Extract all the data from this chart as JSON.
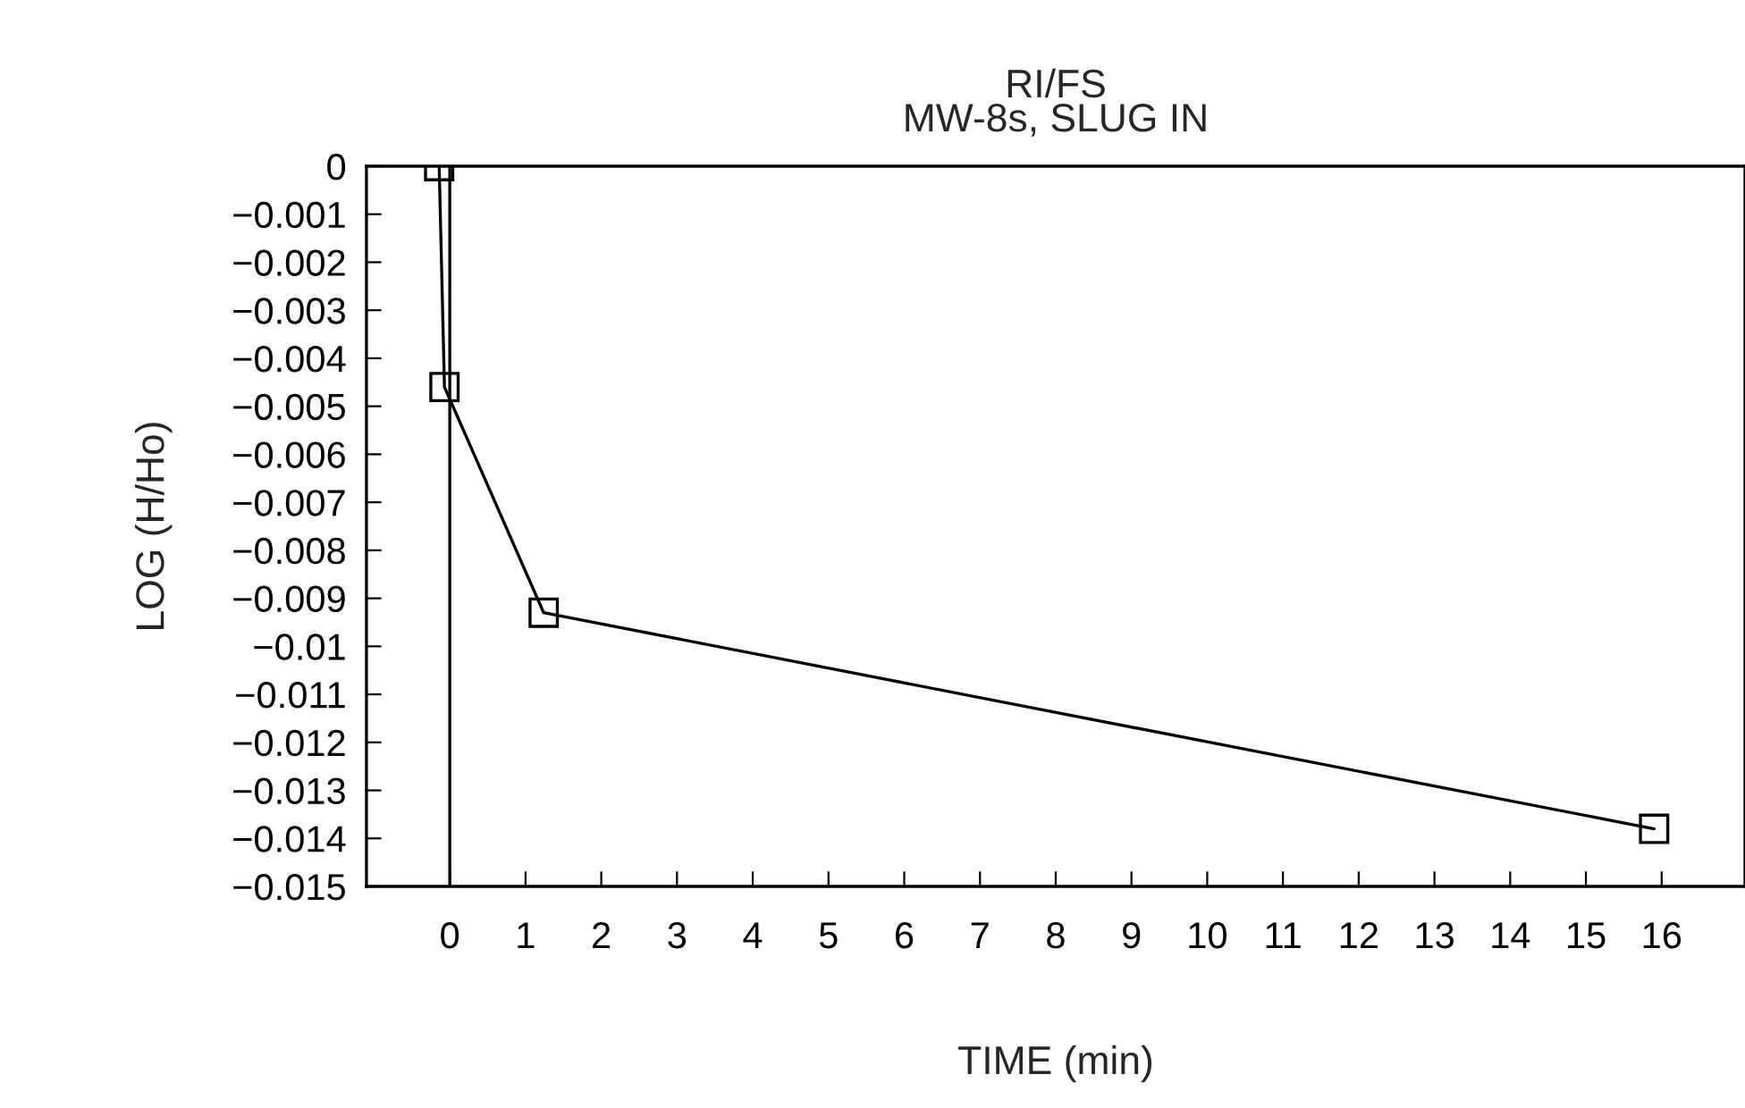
{
  "chart_data": {
    "type": "line",
    "title": "RI/FS\nMW-8s, SLUG IN",
    "xlabel": "TIME (min)",
    "ylabel": "LOG (H/Ho)",
    "x": [
      -0.14,
      -0.07,
      1.24,
      15.9
    ],
    "series": [
      {
        "color": "#000000",
        "values": [
          0,
          -0.0046,
          -0.0093,
          -0.0138
        ]
      }
    ],
    "marker": "square",
    "line_style": "solid",
    "grid": false,
    "legend": false,
    "xlim": [
      -1.1,
      17.1
    ],
    "ylim": [
      -0.015,
      0
    ],
    "xticks": [
      0,
      1,
      2,
      3,
      4,
      5,
      6,
      7,
      8,
      9,
      10,
      11,
      12,
      13,
      14,
      15,
      16
    ],
    "yticks": [
      0,
      {
        "value": -0.001,
        "label": "−0.001"
      },
      {
        "value": -0.002,
        "label": "−0.002"
      },
      {
        "value": -0.003,
        "label": "−0.003"
      },
      {
        "value": -0.004,
        "label": "−0.004"
      },
      {
        "value": -0.005,
        "label": "−0.005"
      },
      {
        "value": -0.006,
        "label": "−0.006"
      },
      {
        "value": -0.007,
        "label": "−0.007"
      },
      {
        "value": -0.008,
        "label": "−0.008"
      },
      {
        "value": -0.009,
        "label": "−0.009"
      },
      {
        "value": -0.01,
        "label": "−0.01"
      },
      {
        "value": -0.011,
        "label": "−0.011"
      },
      {
        "value": -0.012,
        "label": "−0.012"
      },
      {
        "value": -0.013,
        "label": "−0.013"
      },
      {
        "value": -0.014,
        "label": "−0.014"
      },
      {
        "value": -0.015,
        "label": "−0.015"
      }
    ],
    "ref_lines": [
      {
        "axis": "x",
        "value": 0,
        "color": "#000000"
      }
    ]
  }
}
